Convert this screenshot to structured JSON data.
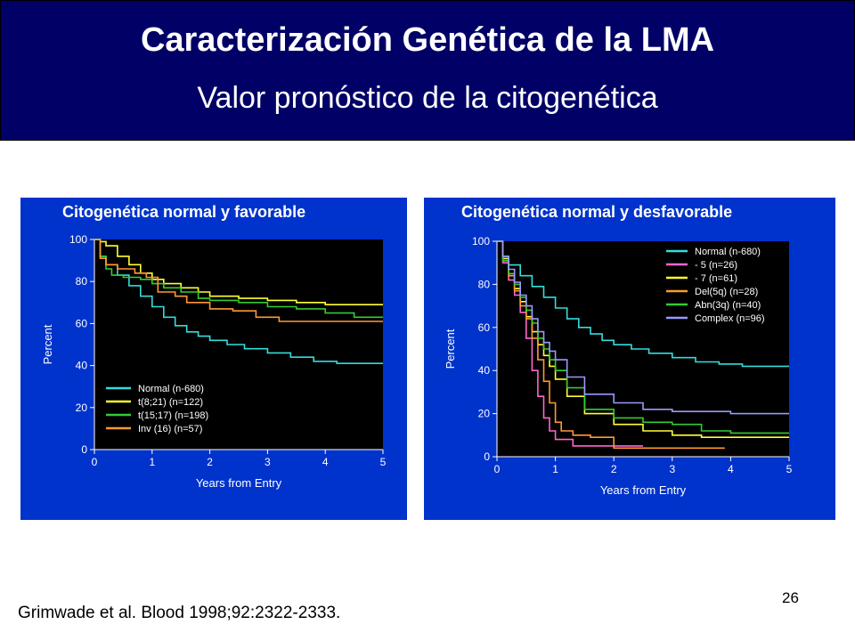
{
  "slide": {
    "title": "Caracterización Genética de la LMA",
    "subtitle": "Valor pronóstico de la citogenética",
    "citation": "Grimwade et al. Blood 1998;92:2322-2333.",
    "page_number": "26"
  },
  "colors": {
    "header_bg": "#000066",
    "panel_bg": "#0033cc",
    "plot_bg": "#000000"
  },
  "chart_data": [
    {
      "type": "line",
      "panel_title": "Citogenética normal y favorable",
      "xlabel": "Years from Entry",
      "ylabel": "Percent",
      "xlim": [
        0,
        5
      ],
      "ylim": [
        0,
        100
      ],
      "x_ticks": [
        "0",
        "1",
        "2",
        "3",
        "4",
        "5"
      ],
      "y_ticks": [
        "0",
        "20",
        "40",
        "60",
        "80",
        "100"
      ],
      "legend_position": "bottom-left",
      "series": [
        {
          "name": "Normal (n-680)",
          "color": "#33dddd",
          "x": [
            0,
            0.1,
            0.2,
            0.4,
            0.6,
            0.8,
            1.0,
            1.2,
            1.4,
            1.6,
            1.8,
            2.0,
            2.3,
            2.6,
            3.0,
            3.4,
            3.8,
            4.2,
            4.6,
            5.0
          ],
          "y": [
            100,
            92,
            88,
            83,
            78,
            73,
            68,
            63,
            59,
            56,
            54,
            52,
            50,
            48,
            46,
            44,
            42,
            41,
            41,
            41
          ]
        },
        {
          "name": "t(8;21) (n=122)",
          "color": "#ffff33",
          "x": [
            0,
            0.1,
            0.2,
            0.4,
            0.6,
            0.8,
            1.0,
            1.2,
            1.5,
            1.8,
            2.0,
            2.5,
            3.0,
            3.5,
            4.0,
            4.5,
            5.0
          ],
          "y": [
            100,
            99,
            97,
            92,
            88,
            84,
            81,
            79,
            77,
            75,
            73,
            72,
            71,
            70,
            69,
            69,
            69
          ]
        },
        {
          "name": "t(15;17) (n=198)",
          "color": "#33cc33",
          "x": [
            0,
            0.1,
            0.2,
            0.3,
            0.5,
            0.8,
            1.0,
            1.2,
            1.5,
            1.8,
            2.0,
            2.5,
            3.0,
            3.5,
            4.0,
            4.5,
            5.0
          ],
          "y": [
            100,
            92,
            86,
            83,
            82,
            81,
            79,
            77,
            75,
            72,
            71,
            70,
            68,
            67,
            65,
            63,
            63
          ]
        },
        {
          "name": "Inv (16) (n=57)",
          "color": "#ff9933",
          "x": [
            0,
            0.1,
            0.2,
            0.4,
            0.7,
            0.9,
            1.1,
            1.4,
            1.6,
            2.0,
            2.4,
            2.8,
            3.2,
            3.8,
            4.5,
            5.0
          ],
          "y": [
            100,
            91,
            88,
            86,
            84,
            82,
            75,
            73,
            70,
            67,
            66,
            63,
            61,
            61,
            61,
            61
          ]
        }
      ]
    },
    {
      "type": "line",
      "panel_title": "Citogenética normal y desfavorable",
      "xlabel": "Years from Entry",
      "ylabel": "Percent",
      "xlim": [
        0,
        5
      ],
      "ylim": [
        0,
        100
      ],
      "x_ticks": [
        "0",
        "1",
        "2",
        "3",
        "4",
        "5"
      ],
      "y_ticks": [
        "0",
        "20",
        "40",
        "60",
        "80",
        "100"
      ],
      "legend_position": "top-right",
      "series": [
        {
          "name": "Normal (n-680)",
          "color": "#33dddd",
          "x": [
            0,
            0.1,
            0.2,
            0.4,
            0.6,
            0.8,
            1.0,
            1.2,
            1.4,
            1.6,
            1.8,
            2.0,
            2.3,
            2.6,
            3.0,
            3.4,
            3.8,
            4.2,
            4.6,
            5.0
          ],
          "y": [
            100,
            93,
            89,
            84,
            79,
            74,
            69,
            64,
            60,
            57,
            54,
            52,
            50,
            48,
            46,
            44,
            43,
            42,
            42,
            42
          ]
        },
        {
          "name": "- 5 (n=26)",
          "color": "#ff66cc",
          "x": [
            0,
            0.1,
            0.2,
            0.3,
            0.4,
            0.5,
            0.6,
            0.7,
            0.8,
            0.9,
            1.0,
            1.3,
            1.6,
            2.0,
            2.5
          ],
          "y": [
            100,
            90,
            82,
            75,
            67,
            55,
            40,
            28,
            18,
            12,
            8,
            5,
            5,
            5,
            5
          ]
        },
        {
          "name": "- 7 (n=61)",
          "color": "#ffff33",
          "x": [
            0,
            0.1,
            0.2,
            0.3,
            0.4,
            0.5,
            0.6,
            0.7,
            0.8,
            0.9,
            1.0,
            1.2,
            1.5,
            2.0,
            2.5,
            3.0,
            3.5,
            4.0,
            4.5,
            5.0
          ],
          "y": [
            100,
            92,
            85,
            78,
            72,
            65,
            58,
            52,
            47,
            42,
            36,
            28,
            20,
            15,
            12,
            10,
            9,
            9,
            9,
            9
          ]
        },
        {
          "name": "Del(5q) (n=28)",
          "color": "#ff9933",
          "x": [
            0,
            0.1,
            0.2,
            0.3,
            0.4,
            0.5,
            0.6,
            0.7,
            0.8,
            0.9,
            1.0,
            1.1,
            1.3,
            1.6,
            2.0,
            2.5,
            3.0,
            3.5,
            3.9
          ],
          "y": [
            100,
            91,
            84,
            77,
            70,
            64,
            55,
            45,
            35,
            25,
            16,
            12,
            10,
            9,
            4,
            4,
            4,
            4,
            4
          ]
        },
        {
          "name": "Abn(3q) (n=40)",
          "color": "#33cc33",
          "x": [
            0,
            0.1,
            0.2,
            0.3,
            0.4,
            0.5,
            0.6,
            0.7,
            0.8,
            0.9,
            1.0,
            1.2,
            1.5,
            2.0,
            2.5,
            3.0,
            3.5,
            4.0,
            4.5,
            5.0
          ],
          "y": [
            100,
            91,
            85,
            80,
            74,
            68,
            62,
            55,
            50,
            45,
            40,
            32,
            22,
            18,
            16,
            15,
            12,
            11,
            11,
            11
          ]
        },
        {
          "name": "Complex (n=96)",
          "color": "#9999ff",
          "x": [
            0,
            0.1,
            0.2,
            0.3,
            0.4,
            0.5,
            0.6,
            0.7,
            0.8,
            0.9,
            1.0,
            1.2,
            1.5,
            2.0,
            2.5,
            3.0,
            3.5,
            4.0,
            4.5,
            5.0
          ],
          "y": [
            100,
            93,
            87,
            81,
            75,
            70,
            64,
            58,
            53,
            49,
            45,
            37,
            29,
            25,
            22,
            21,
            21,
            20,
            20,
            20
          ]
        }
      ]
    }
  ]
}
